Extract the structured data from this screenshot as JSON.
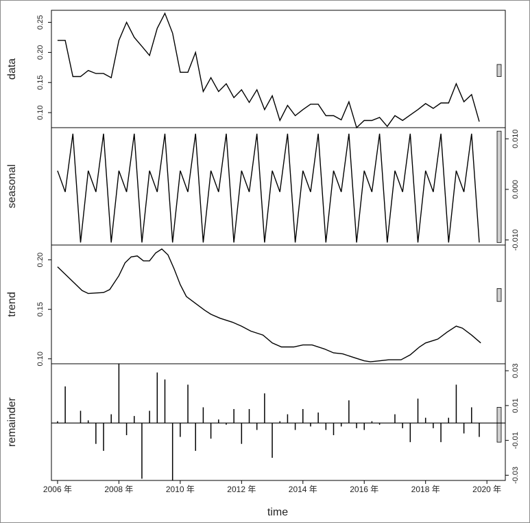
{
  "chart_data": {
    "type": "line",
    "xlabel": "time",
    "x_tick_labels": [
      "2006 年",
      "2008 年",
      "2010 年",
      "2012 年",
      "2014 年",
      "2016 年",
      "2018 年",
      "2020 年"
    ],
    "x_tick_values": [
      2006,
      2008,
      2010,
      2012,
      2014,
      2016,
      2018,
      2020
    ],
    "x_range": [
      2005.8,
      2020.6
    ],
    "panels": [
      {
        "name": "data",
        "ylabel": "data",
        "render": "line",
        "axis_side": "left",
        "ylim": [
          0.075,
          0.27
        ],
        "ticks": [
          0.1,
          0.15,
          0.2,
          0.25
        ],
        "tick_labels": [
          "0.10",
          "0.15",
          "0.20",
          "0.25"
        ],
        "range_bar": [
          0.16,
          0.18
        ],
        "x": [
          2006.0,
          2006.25,
          2006.5,
          2006.75,
          2007.0,
          2007.25,
          2007.5,
          2007.75,
          2008.0,
          2008.25,
          2008.5,
          2008.75,
          2009.0,
          2009.25,
          2009.5,
          2009.75,
          2010.0,
          2010.25,
          2010.5,
          2010.75,
          2011.0,
          2011.25,
          2011.5,
          2011.75,
          2012.0,
          2012.25,
          2012.5,
          2012.75,
          2013.0,
          2013.25,
          2013.5,
          2013.75,
          2014.0,
          2014.25,
          2014.5,
          2014.75,
          2015.0,
          2015.25,
          2015.5,
          2015.75,
          2016.0,
          2016.25,
          2016.5,
          2016.75,
          2017.0,
          2017.25,
          2017.5,
          2017.75,
          2018.0,
          2018.25,
          2018.5,
          2018.75,
          2019.0,
          2019.25,
          2019.5,
          2019.75
        ],
        "y": [
          0.22,
          0.22,
          0.16,
          0.16,
          0.17,
          0.165,
          0.165,
          0.158,
          0.22,
          0.25,
          0.225,
          0.21,
          0.195,
          0.24,
          0.265,
          0.232,
          0.167,
          0.167,
          0.2,
          0.135,
          0.158,
          0.135,
          0.148,
          0.125,
          0.138,
          0.117,
          0.138,
          0.105,
          0.128,
          0.087,
          0.112,
          0.095,
          0.105,
          0.114,
          0.114,
          0.095,
          0.095,
          0.088,
          0.118,
          0.075,
          0.087,
          0.087,
          0.092,
          0.077,
          0.095,
          0.087,
          0.096,
          0.105,
          0.115,
          0.107,
          0.116,
          0.116,
          0.148,
          0.118,
          0.13,
          0.085
        ]
      },
      {
        "name": "seasonal",
        "ylabel": "seasonal",
        "render": "line",
        "axis_side": "right",
        "ylim": [
          -0.011,
          0.0122
        ],
        "ticks": [
          -0.01,
          0.0,
          0.01
        ],
        "tick_labels": [
          "-0.010",
          "0.000",
          "0.010"
        ],
        "range_bar": [
          -0.0105,
          0.0115
        ],
        "pattern": [
          0.0037,
          -0.0005,
          0.011,
          -0.0105
        ],
        "x_start": 2006.0,
        "step": 0.25,
        "n": 56
      },
      {
        "name": "trend",
        "ylabel": "trend",
        "render": "line",
        "axis_side": "left",
        "ylim": [
          0.095,
          0.215
        ],
        "ticks": [
          0.1,
          0.15,
          0.2
        ],
        "tick_labels": [
          "0.10",
          "0.15",
          "0.20"
        ],
        "range_bar": [
          0.158,
          0.171
        ],
        "x": [
          2006.0,
          2006.4,
          2006.8,
          2007.0,
          2007.5,
          2007.7,
          2008.0,
          2008.2,
          2008.4,
          2008.6,
          2008.8,
          2009.0,
          2009.2,
          2009.4,
          2009.6,
          2009.8,
          2010.0,
          2010.2,
          2010.5,
          2010.8,
          2011.0,
          2011.3,
          2011.7,
          2012.0,
          2012.3,
          2012.7,
          2013.0,
          2013.3,
          2013.7,
          2014.0,
          2014.3,
          2014.7,
          2015.0,
          2015.3,
          2015.7,
          2016.0,
          2016.2,
          2016.5,
          2016.8,
          2017.2,
          2017.5,
          2017.8,
          2018.0,
          2018.4,
          2018.7,
          2019.0,
          2019.2,
          2019.5,
          2019.8
        ],
        "y": [
          0.193,
          0.181,
          0.169,
          0.166,
          0.167,
          0.17,
          0.184,
          0.197,
          0.203,
          0.204,
          0.199,
          0.199,
          0.207,
          0.211,
          0.205,
          0.191,
          0.175,
          0.163,
          0.156,
          0.149,
          0.145,
          0.141,
          0.137,
          0.133,
          0.128,
          0.124,
          0.116,
          0.112,
          0.112,
          0.114,
          0.114,
          0.11,
          0.106,
          0.105,
          0.101,
          0.098,
          0.097,
          0.098,
          0.099,
          0.099,
          0.104,
          0.112,
          0.116,
          0.12,
          0.127,
          0.133,
          0.131,
          0.124,
          0.116
        ]
      },
      {
        "name": "remainder",
        "ylabel": "remainder",
        "render": "spikes",
        "axis_side": "right",
        "ylim": [
          -0.033,
          0.034
        ],
        "ticks": [
          -0.03,
          -0.01,
          0.01,
          0.03
        ],
        "tick_labels": [
          "-0.03",
          "-0.01",
          "0.01",
          "0.03"
        ],
        "range_bar": [
          -0.011,
          0.009
        ],
        "x": [
          2006.0,
          2006.25,
          2006.5,
          2006.75,
          2007.0,
          2007.25,
          2007.5,
          2007.75,
          2008.0,
          2008.25,
          2008.5,
          2008.75,
          2009.0,
          2009.25,
          2009.5,
          2009.75,
          2010.0,
          2010.25,
          2010.5,
          2010.75,
          2011.0,
          2011.25,
          2011.5,
          2011.75,
          2012.0,
          2012.25,
          2012.5,
          2012.75,
          2013.0,
          2013.25,
          2013.5,
          2013.75,
          2014.0,
          2014.25,
          2014.5,
          2014.75,
          2015.0,
          2015.25,
          2015.5,
          2015.75,
          2016.0,
          2016.25,
          2016.5,
          2016.75,
          2017.0,
          2017.25,
          2017.5,
          2017.75,
          2018.0,
          2018.25,
          2018.5,
          2018.75,
          2019.0,
          2019.25,
          2019.5,
          2019.75
        ],
        "y": [
          0.001,
          0.021,
          0.0,
          0.007,
          0.0015,
          -0.012,
          -0.016,
          0.005,
          0.034,
          -0.007,
          0.004,
          -0.032,
          0.007,
          0.029,
          0.025,
          -0.033,
          -0.008,
          0.022,
          -0.016,
          0.009,
          -0.009,
          0.002,
          -0.001,
          0.008,
          -0.012,
          0.008,
          -0.004,
          0.017,
          -0.02,
          0.001,
          0.005,
          -0.004,
          0.008,
          -0.002,
          0.006,
          -0.004,
          -0.007,
          -0.002,
          0.013,
          -0.003,
          -0.004,
          0.001,
          -0.001,
          0.0,
          0.005,
          -0.003,
          -0.011,
          0.014,
          0.003,
          -0.003,
          -0.011,
          0.003,
          0.022,
          -0.006,
          0.009,
          -0.008
        ]
      }
    ]
  }
}
